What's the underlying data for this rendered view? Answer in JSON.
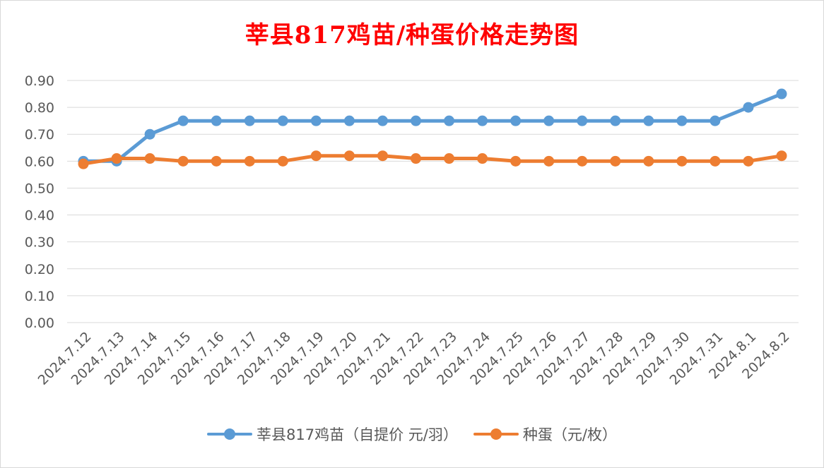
{
  "chart_data": {
    "type": "line",
    "title": "莘县817鸡苗/种蛋价格走势图",
    "categories": [
      "2024.7.12",
      "2024.7.13",
      "2024.7.14",
      "2024.7.15",
      "2024.7.16",
      "2024.7.17",
      "2024.7.18",
      "2024.7.19",
      "2024.7.20",
      "2024.7.21",
      "2024.7.22",
      "2024.7.23",
      "2024.7.24",
      "2024.7.25",
      "2024.7.26",
      "2024.7.27",
      "2024.7.28",
      "2024.7.29",
      "2024.7.30",
      "2024.7.31",
      "2024.8.1",
      "2024.8.2"
    ],
    "series": [
      {
        "name": "莘县817鸡苗（自提价 元/羽）",
        "color": "#5b9bd5",
        "values": [
          0.6,
          0.6,
          0.7,
          0.75,
          0.75,
          0.75,
          0.75,
          0.75,
          0.75,
          0.75,
          0.75,
          0.75,
          0.75,
          0.75,
          0.75,
          0.75,
          0.75,
          0.75,
          0.75,
          0.75,
          0.8,
          0.85
        ]
      },
      {
        "name": "种蛋（元/枚）",
        "color": "#ed7d31",
        "values": [
          0.59,
          0.61,
          0.61,
          0.6,
          0.6,
          0.6,
          0.6,
          0.62,
          0.62,
          0.62,
          0.61,
          0.61,
          0.61,
          0.6,
          0.6,
          0.6,
          0.6,
          0.6,
          0.6,
          0.6,
          0.6,
          0.62
        ]
      }
    ],
    "yticks": [
      "0.00",
      "0.10",
      "0.20",
      "0.30",
      "0.40",
      "0.50",
      "0.60",
      "0.70",
      "0.80",
      "0.90"
    ],
    "ylim": [
      0,
      0.9
    ],
    "grid": true,
    "legend": "bottom",
    "title_color": "#ff0000"
  }
}
